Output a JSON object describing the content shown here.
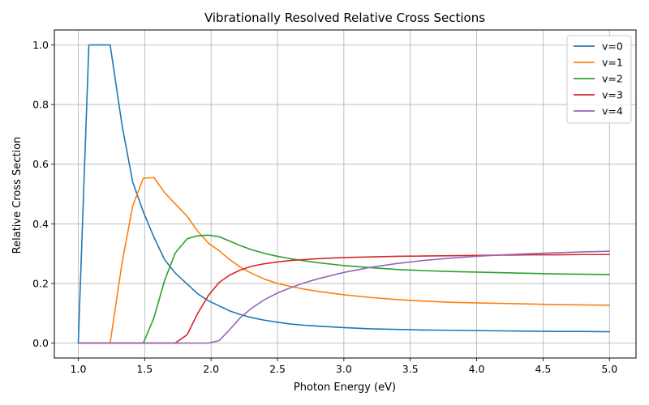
{
  "chart_data": {
    "type": "line",
    "title": "Vibrationally Resolved Relative Cross Sections",
    "xlabel": "Photon Energy (eV)",
    "ylabel": "Relative Cross Section",
    "xlim": [
      0.82,
      5.2
    ],
    "ylim": [
      -0.05,
      1.05
    ],
    "xticks": [
      1.0,
      1.5,
      2.0,
      2.5,
      3.0,
      3.5,
      4.0,
      4.5,
      5.0
    ],
    "xtick_labels": [
      "1.0",
      "1.5",
      "2.0",
      "2.5",
      "3.0",
      "3.5",
      "4.0",
      "4.5",
      "5.0"
    ],
    "yticks": [
      0.0,
      0.2,
      0.4,
      0.6,
      0.8,
      1.0
    ],
    "ytick_labels": [
      "0.0",
      "0.2",
      "0.4",
      "0.6",
      "0.8",
      "1.0"
    ],
    "grid": true,
    "legend_position": "top-right",
    "series": [
      {
        "name": "v=0",
        "color": "#1f77b4",
        "x": [
          1.0,
          1.08,
          1.24,
          1.33,
          1.41,
          1.49,
          1.57,
          1.65,
          1.73,
          1.82,
          1.9,
          1.98,
          2.06,
          2.14,
          2.22,
          2.3,
          2.4,
          2.5,
          2.6,
          2.7,
          2.8,
          3.0,
          3.2,
          3.4,
          3.6,
          3.8,
          4.0,
          4.2,
          4.4,
          4.6,
          4.8,
          5.0
        ],
        "y": [
          0.0,
          1.0,
          1.0,
          0.73,
          0.54,
          0.44,
          0.355,
          0.28,
          0.235,
          0.198,
          0.165,
          0.142,
          0.125,
          0.108,
          0.096,
          0.086,
          0.077,
          0.07,
          0.064,
          0.06,
          0.057,
          0.052,
          0.048,
          0.046,
          0.044,
          0.043,
          0.042,
          0.041,
          0.04,
          0.039,
          0.039,
          0.038
        ]
      },
      {
        "name": "v=1",
        "color": "#ff7f0e",
        "x": [
          1.0,
          1.24,
          1.33,
          1.41,
          1.49,
          1.57,
          1.65,
          1.73,
          1.82,
          1.9,
          1.98,
          2.06,
          2.14,
          2.22,
          2.3,
          2.4,
          2.5,
          2.6,
          2.7,
          2.8,
          3.0,
          3.2,
          3.4,
          3.6,
          3.8,
          4.0,
          4.2,
          4.4,
          4.6,
          4.8,
          5.0
        ],
        "y": [
          0.0,
          0.0,
          0.27,
          0.46,
          0.553,
          0.555,
          0.505,
          0.467,
          0.425,
          0.375,
          0.335,
          0.31,
          0.28,
          0.255,
          0.235,
          0.215,
          0.2,
          0.19,
          0.181,
          0.174,
          0.162,
          0.153,
          0.146,
          0.141,
          0.137,
          0.135,
          0.133,
          0.131,
          0.129,
          0.128,
          0.127
        ]
      },
      {
        "name": "v=2",
        "color": "#2ca02c",
        "x": [
          1.0,
          1.49,
          1.57,
          1.65,
          1.73,
          1.82,
          1.9,
          1.98,
          2.06,
          2.14,
          2.22,
          2.3,
          2.4,
          2.5,
          2.6,
          2.7,
          2.8,
          3.0,
          3.2,
          3.4,
          3.6,
          3.8,
          4.0,
          4.2,
          4.4,
          4.6,
          4.8,
          5.0
        ],
        "y": [
          0.0,
          0.0,
          0.085,
          0.21,
          0.302,
          0.35,
          0.36,
          0.362,
          0.357,
          0.342,
          0.327,
          0.314,
          0.301,
          0.291,
          0.283,
          0.276,
          0.27,
          0.26,
          0.253,
          0.247,
          0.243,
          0.24,
          0.238,
          0.236,
          0.234,
          0.232,
          0.231,
          0.23
        ]
      },
      {
        "name": "v=3",
        "color": "#d62728",
        "x": [
          1.0,
          1.73,
          1.82,
          1.9,
          1.98,
          2.06,
          2.14,
          2.22,
          2.3,
          2.4,
          2.5,
          2.6,
          2.7,
          2.8,
          3.0,
          3.2,
          3.4,
          3.6,
          3.8,
          4.0,
          4.2,
          4.4,
          4.6,
          4.8,
          5.0
        ],
        "y": [
          0.0,
          0.0,
          0.028,
          0.1,
          0.16,
          0.203,
          0.228,
          0.245,
          0.257,
          0.266,
          0.272,
          0.277,
          0.28,
          0.283,
          0.287,
          0.289,
          0.291,
          0.292,
          0.293,
          0.294,
          0.295,
          0.296,
          0.296,
          0.297,
          0.297
        ]
      },
      {
        "name": "v=4",
        "color": "#9467bd",
        "x": [
          1.0,
          1.98,
          2.06,
          2.14,
          2.22,
          2.3,
          2.4,
          2.5,
          2.6,
          2.7,
          2.8,
          3.0,
          3.2,
          3.4,
          3.6,
          3.8,
          4.0,
          4.2,
          4.4,
          4.6,
          4.8,
          5.0
        ],
        "y": [
          0.0,
          0.0,
          0.008,
          0.045,
          0.085,
          0.115,
          0.145,
          0.168,
          0.186,
          0.202,
          0.215,
          0.237,
          0.254,
          0.267,
          0.277,
          0.285,
          0.291,
          0.296,
          0.3,
          0.303,
          0.306,
          0.308
        ]
      }
    ]
  }
}
